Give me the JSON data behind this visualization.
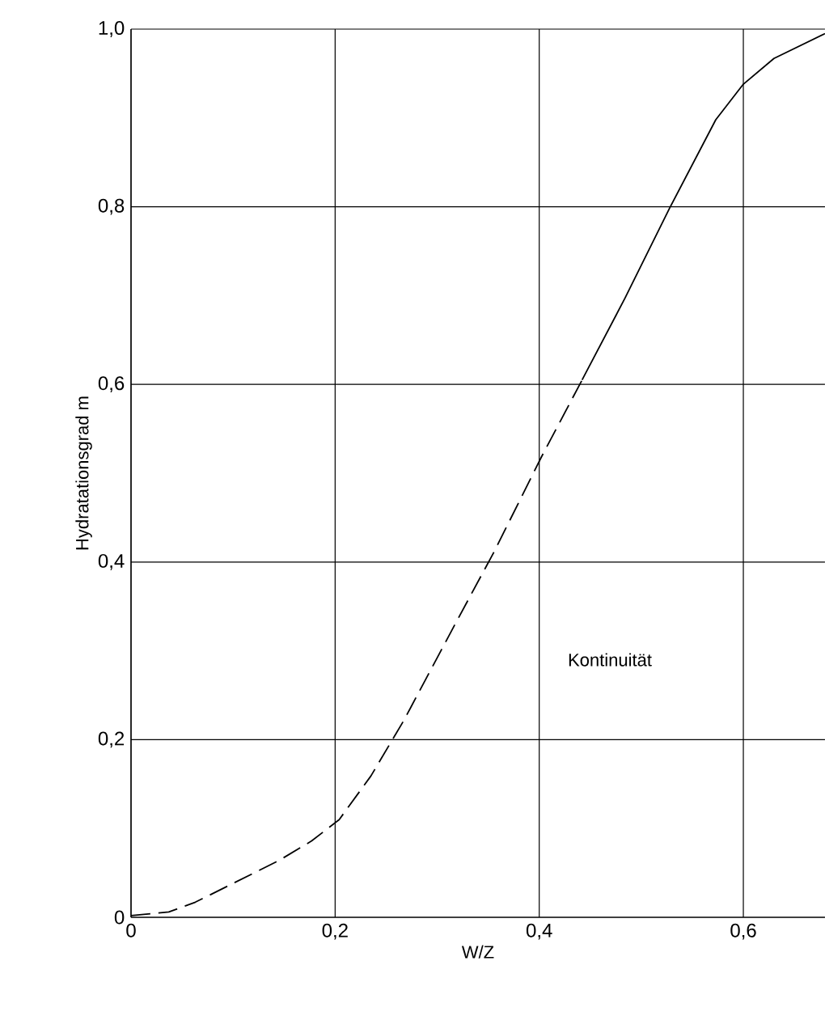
{
  "chart_data": {
    "type": "line",
    "xlabel": "W/Z",
    "ylabel": "Hydratationsgrad m",
    "xlim": [
      0,
      0.68
    ],
    "ylim": [
      0,
      1
    ],
    "xticks": [
      0,
      {
        "value": 0.2,
        "label": "0,2"
      },
      {
        "value": 0.4,
        "label": "0,4"
      },
      {
        "value": 0.6,
        "label": "0,6"
      }
    ],
    "yticks": [
      0,
      {
        "value": 0.2,
        "label": "0,2"
      },
      {
        "value": 0.4,
        "label": "0,4"
      },
      {
        "value": 0.6,
        "label": "0,6"
      },
      {
        "value": 0.8,
        "label": "0,8"
      },
      {
        "value": 1,
        "label": "1,0"
      }
    ],
    "grid": true,
    "series": [
      {
        "color": "#000000",
        "line_style": "dashed",
        "x": [
          0,
          0.037,
          0.063,
          0.145,
          0.177,
          0.204,
          0.235,
          0.267,
          0.318,
          0.356,
          0.402,
          0.442
        ],
        "values": [
          0.002,
          0.006,
          0.017,
          0.064,
          0.086,
          0.11,
          0.159,
          0.221,
          0.331,
          0.412,
          0.518,
          0.605
        ]
      },
      {
        "color": "#000000",
        "line_style": "solid",
        "x": [
          0.442,
          0.484,
          0.528,
          0.573,
          0.6,
          0.63,
          0.68
        ],
        "values": [
          0.605,
          0.697,
          0.799,
          0.898,
          0.938,
          0.967,
          0.995
        ]
      }
    ],
    "annotations": [
      "Kontinuität"
    ]
  }
}
